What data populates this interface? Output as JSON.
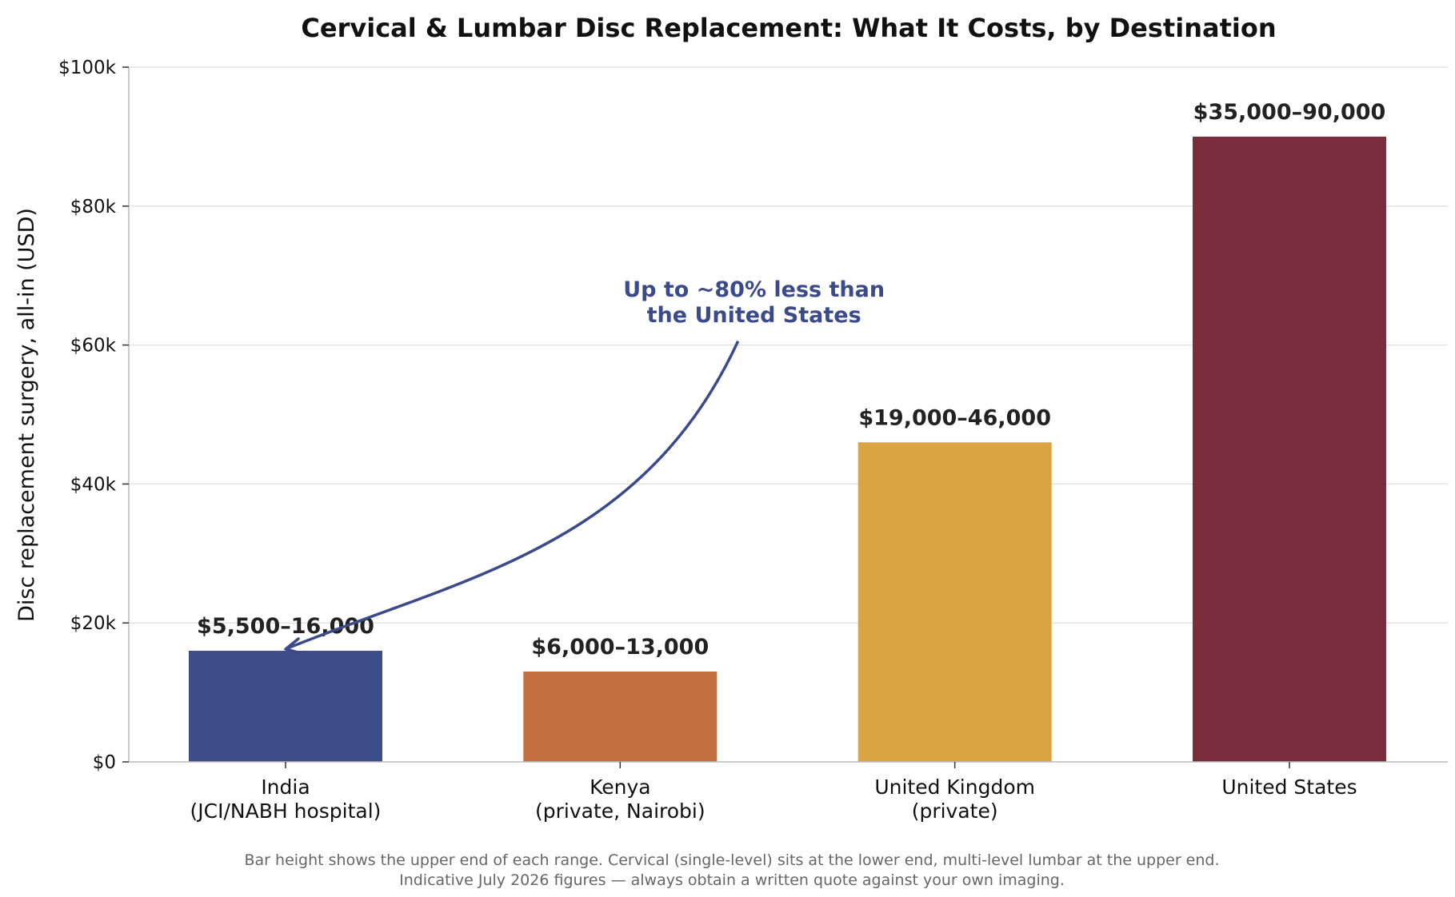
{
  "chart_data": {
    "type": "bar",
    "title": "Cervical & Lumbar Disc Replacement: What It Costs, by Destination",
    "ylabel": "Disc replacement surgery, all-in (USD)",
    "xlabel": "",
    "ylim": [
      0,
      100000
    ],
    "yticks": [
      0,
      20000,
      40000,
      60000,
      80000,
      100000
    ],
    "ytick_labels": [
      "$0",
      "$20k",
      "$40k",
      "$60k",
      "$80k",
      "$100k"
    ],
    "grid": true,
    "categories": [
      [
        "India",
        "(JCI/NABH hospital)"
      ],
      [
        "Kenya",
        "(private, Nairobi)"
      ],
      [
        "United Kingdom",
        "(private)"
      ],
      [
        "United States"
      ]
    ],
    "values": [
      16000,
      13000,
      46000,
      90000
    ],
    "data_labels": [
      "$5,500–16,000",
      "$6,000–13,000",
      "$19,000–46,000",
      "$35,000–90,000"
    ],
    "colors": [
      "#3d4e8a",
      "#c2703d",
      "#daa442",
      "#7a2d3b"
    ],
    "annotation": {
      "lines": [
        "Up to ~80% less than",
        "the United States"
      ],
      "color": "#3b4b89",
      "arrow_target_category": 0,
      "text_anchor": {
        "x_category": 1.4,
        "y_value": 67000
      }
    },
    "footnote": [
      "Bar height shows the upper end of each range. Cervical (single-level) sits at the lower end, multi-level lumbar at the upper end.",
      "Indicative July 2026 figures — always obtain a written quote against your own imaging."
    ]
  }
}
